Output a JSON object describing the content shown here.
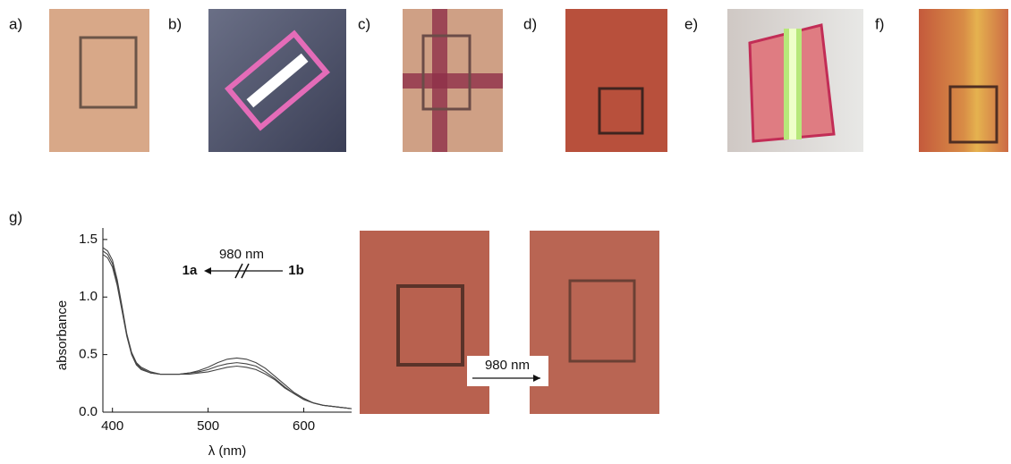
{
  "panel_labels": [
    "a)",
    "b)",
    "c)",
    "d)",
    "e)",
    "f)",
    "g)"
  ],
  "photo_arrow_label": "980 nm",
  "chart_data": {
    "type": "line",
    "x_label": "λ (nm)",
    "y_label": "absorbance",
    "annotation": {
      "wavelength": "980 nm",
      "from": "1b",
      "to": "1a"
    },
    "x": [
      390,
      395,
      400,
      405,
      410,
      415,
      420,
      425,
      430,
      440,
      450,
      460,
      470,
      480,
      490,
      500,
      510,
      520,
      530,
      540,
      550,
      560,
      570,
      580,
      590,
      600,
      610,
      620,
      630,
      640,
      650
    ],
    "series": [
      {
        "color": "#444444",
        "values": [
          1.43,
          1.4,
          1.32,
          1.15,
          0.92,
          0.68,
          0.52,
          0.43,
          0.39,
          0.35,
          0.33,
          0.33,
          0.33,
          0.34,
          0.36,
          0.39,
          0.43,
          0.46,
          0.47,
          0.46,
          0.43,
          0.38,
          0.31,
          0.24,
          0.17,
          0.12,
          0.08,
          0.06,
          0.05,
          0.04,
          0.03
        ]
      },
      {
        "color": "#444444",
        "values": [
          1.4,
          1.37,
          1.29,
          1.12,
          0.9,
          0.67,
          0.51,
          0.42,
          0.38,
          0.34,
          0.33,
          0.33,
          0.33,
          0.34,
          0.35,
          0.37,
          0.4,
          0.42,
          0.43,
          0.42,
          0.4,
          0.35,
          0.29,
          0.22,
          0.16,
          0.11,
          0.08,
          0.06,
          0.05,
          0.04,
          0.03
        ]
      },
      {
        "color": "#444444",
        "values": [
          1.37,
          1.34,
          1.26,
          1.1,
          0.88,
          0.66,
          0.5,
          0.41,
          0.37,
          0.34,
          0.33,
          0.33,
          0.33,
          0.33,
          0.34,
          0.35,
          0.37,
          0.39,
          0.4,
          0.39,
          0.37,
          0.33,
          0.28,
          0.21,
          0.16,
          0.11,
          0.08,
          0.06,
          0.05,
          0.04,
          0.03
        ]
      }
    ],
    "xlim": [
      390,
      650
    ],
    "ylim": [
      0,
      1.6
    ],
    "xticks": [
      400,
      500,
      600
    ],
    "yticks": [
      {
        "value": 0,
        "label": "0.0"
      },
      {
        "value": 0.5,
        "label": "0.5"
      },
      {
        "value": 1,
        "label": "1.0"
      },
      {
        "value": 1.5,
        "label": "1.5"
      }
    ]
  }
}
